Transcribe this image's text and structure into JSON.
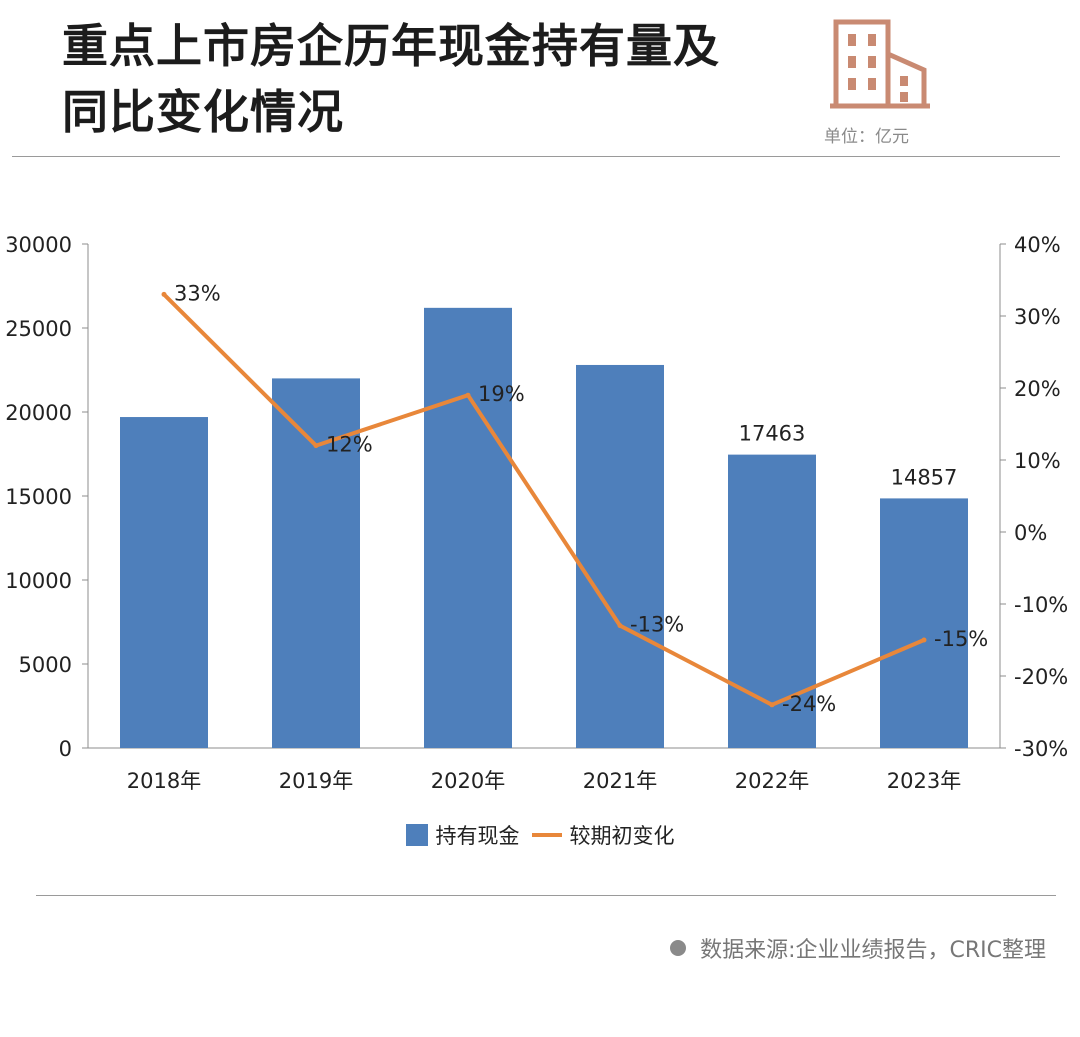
{
  "header": {
    "title_line1": "重点上市房企历年现金持有量及",
    "title_line2": "同比变化情况",
    "unit": "单位：亿元",
    "icon": "building-icon"
  },
  "legend": {
    "bar_label": "持有现金",
    "line_label": "较期初变化"
  },
  "source": "数据来源:企业业绩报告，CRIC整理",
  "colors": {
    "bar": "#4e7fbb",
    "line": "#e8873a",
    "icon": "#c98a72"
  },
  "chart_data": {
    "type": "bar",
    "categories": [
      "2018年",
      "2019年",
      "2020年",
      "2021年",
      "2022年",
      "2023年"
    ],
    "series": [
      {
        "name": "持有现金",
        "type": "bar",
        "axis": "left",
        "values": [
          19700,
          22000,
          26200,
          22800,
          17463,
          14857
        ],
        "data_labels": [
          "",
          "",
          "",
          "",
          "17463",
          "14857"
        ]
      },
      {
        "name": "较期初变化",
        "type": "line",
        "axis": "right",
        "values": [
          33,
          12,
          19,
          -13,
          -24,
          -15
        ],
        "data_labels": [
          "33%",
          "12%",
          "19%",
          "-13%",
          "-24%",
          "-15%"
        ]
      }
    ],
    "y_left": {
      "lim": [
        0,
        30000
      ],
      "ticks": [
        "0",
        "5000",
        "10000",
        "15000",
        "20000",
        "25000",
        "30000"
      ]
    },
    "y_right": {
      "lim": [
        -30,
        40
      ],
      "ticks": [
        "-30%",
        "-20%",
        "-10%",
        "0%",
        "10%",
        "20%",
        "30%",
        "40%"
      ]
    },
    "grid": false,
    "legend_position": "bottom"
  }
}
